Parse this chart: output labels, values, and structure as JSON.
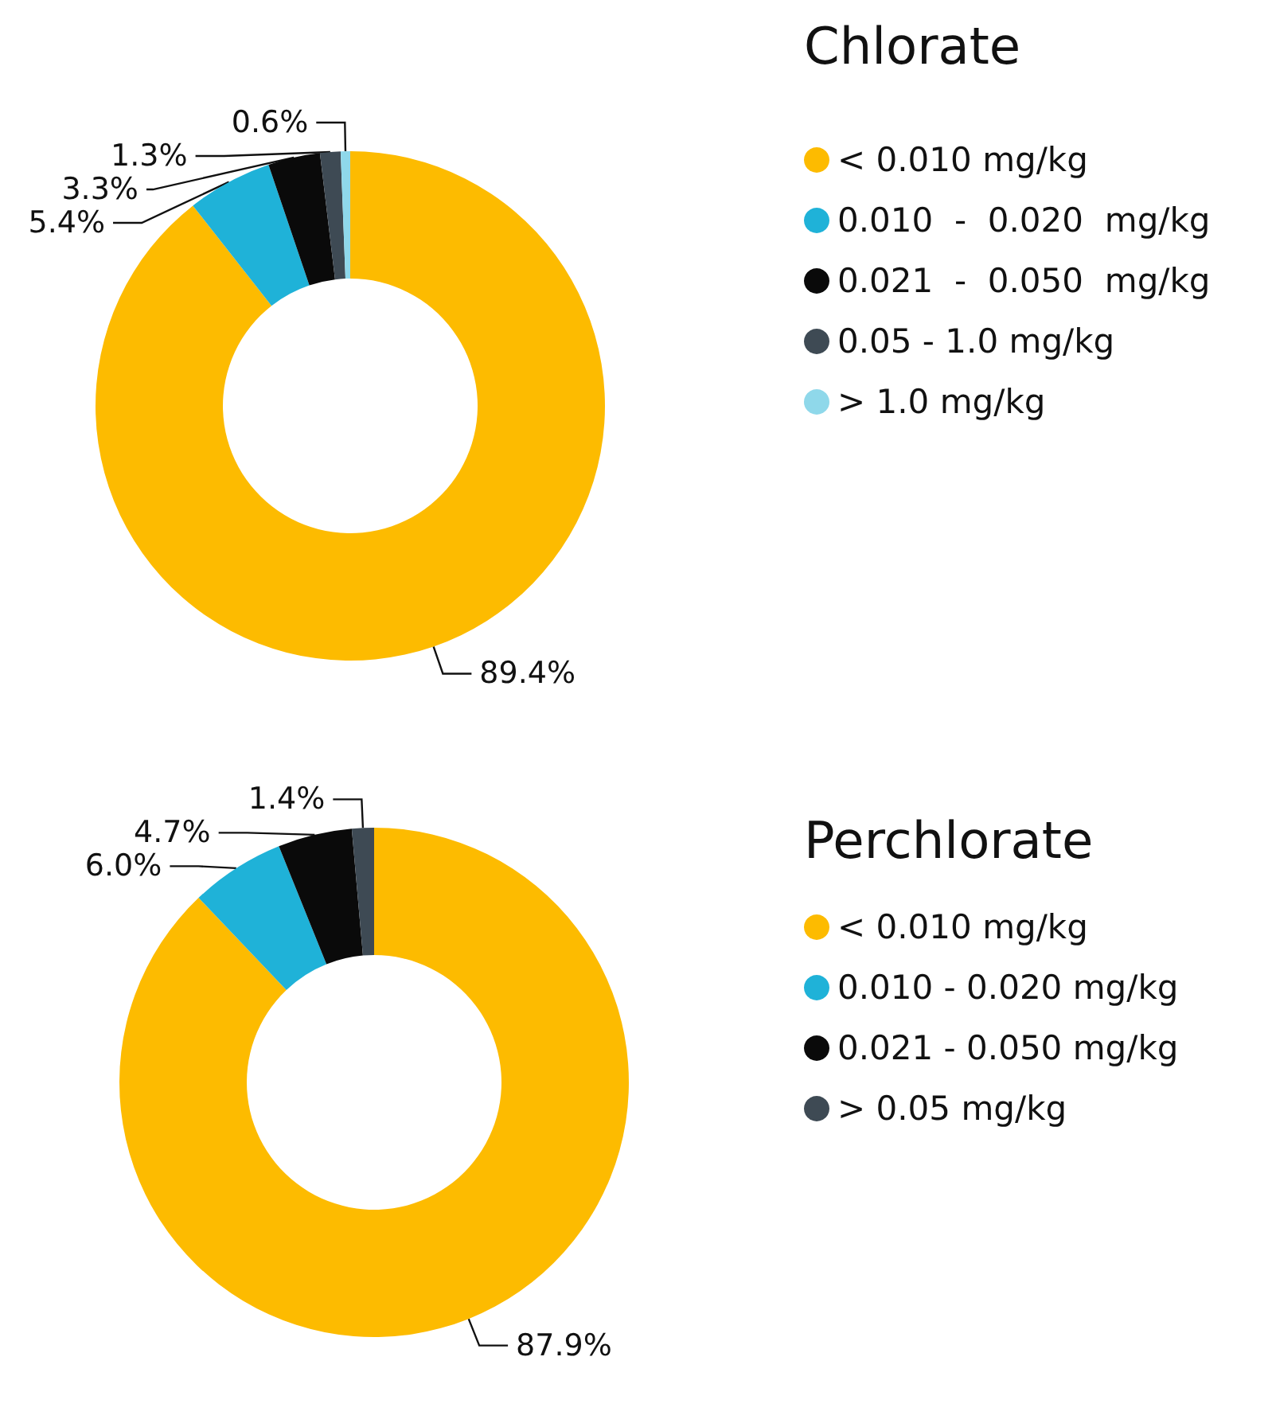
{
  "chart_data": [
    {
      "type": "donut",
      "title": "Chlorate",
      "categories": [
        "< 0.010 mg/kg",
        "0.010  -  0.020  mg/kg",
        "0.021  -  0.050  mg/kg",
        "0.05 - 1.0 mg/kg",
        "> 1.0 mg/kg"
      ],
      "values": [
        89.4,
        5.4,
        3.3,
        1.3,
        0.6
      ],
      "colors": [
        "#fdbb00",
        "#1fb2d8",
        "#0a0a0a",
        "#3e4a54",
        "#8fd8ea"
      ],
      "value_labels": [
        "89.4%",
        "5.4%",
        "3.3%",
        "1.3%",
        "0.6%"
      ],
      "legend": "right"
    },
    {
      "type": "donut",
      "title": "Perchlorate",
      "categories": [
        "< 0.010 mg/kg",
        "0.010 - 0.020 mg/kg",
        "0.021 - 0.050 mg/kg",
        "> 0.05 mg/kg"
      ],
      "values": [
        87.9,
        6.0,
        4.7,
        1.4
      ],
      "colors": [
        "#fdbb00",
        "#1fb2d8",
        "#0a0a0a",
        "#3e4a54"
      ],
      "value_labels": [
        "87.9%",
        "6.0%",
        "4.7%",
        "1.4%"
      ],
      "legend": "right"
    }
  ]
}
